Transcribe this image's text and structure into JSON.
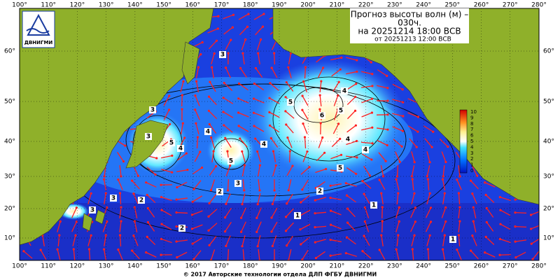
{
  "map": {
    "title_lines": [
      "Прогноз высоты волн (м) –",
      "030ч.",
      "на 20251214 18:00 ВСВ",
      "от 20251213 12:00 ВСВ"
    ],
    "logo_text": "ДВНИГМИ",
    "longitude_labels": [
      "100°",
      "110°",
      "120°",
      "130°",
      "140°",
      "150°",
      "160°",
      "170°",
      "180°",
      "190°",
      "200°",
      "210°",
      "220°",
      "230°",
      "240°",
      "250°",
      "260°",
      "270°",
      "280°"
    ],
    "latitude_labels": [
      "60°",
      "50°",
      "40°",
      "30°",
      "20°",
      "10°"
    ],
    "colorbar_labels": [
      "10",
      "9",
      "8",
      "7",
      "6",
      "5",
      "4",
      "3",
      "2",
      "1",
      "0"
    ],
    "contour_labels": [
      "3",
      "4",
      "5",
      "4",
      "3",
      "2",
      "2",
      "3",
      "3",
      "5",
      "4",
      "4",
      "5",
      "6",
      "5",
      "4",
      "4",
      "5",
      "2",
      "1",
      "1",
      "1",
      "2",
      "3",
      "3"
    ],
    "footer": "© 2017 Авторские технологии отдела ДЛП ФГБУ ДВНИГМИ"
  }
}
